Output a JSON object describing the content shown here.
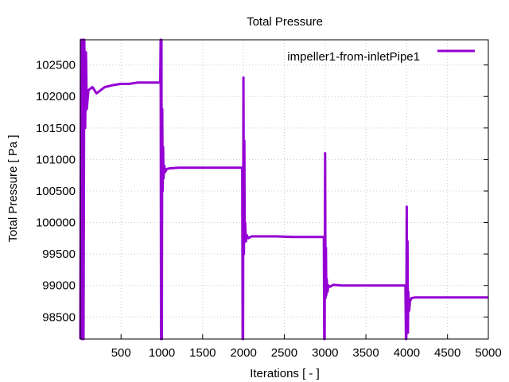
{
  "chart_data": {
    "type": "line",
    "title": "Total Pressure",
    "xlabel": "Iterations [ - ]",
    "ylabel": "Total Pressure [ Pa ]",
    "xlim": [
      1,
      5000
    ],
    "ylim": [
      98150,
      102900
    ],
    "xticks": [
      500,
      1000,
      1500,
      2000,
      2500,
      3000,
      3500,
      4000,
      4500,
      5000
    ],
    "yticks": [
      98500,
      99000,
      99500,
      100000,
      100500,
      101000,
      101500,
      102000,
      102500
    ],
    "grid": true,
    "legend_position": "top-right",
    "colors": {
      "series": "#9400d3"
    },
    "series": [
      {
        "name": "impeller1-from-inletPipe1",
        "x": [
          1,
          10,
          20,
          30,
          40,
          50,
          60,
          70,
          80,
          100,
          150,
          200,
          250,
          300,
          400,
          500,
          600,
          700,
          800,
          900,
          980,
          985,
          990,
          995,
          1000,
          1005,
          1010,
          1015,
          1020,
          1030,
          1040,
          1060,
          1100,
          1200,
          1400,
          1600,
          1800,
          1980,
          1985,
          1990,
          1995,
          2000,
          2005,
          2010,
          2015,
          2020,
          2030,
          2040,
          2060,
          2100,
          2200,
          2400,
          2600,
          2800,
          2980,
          2985,
          2990,
          2995,
          3000,
          3005,
          3010,
          3015,
          3020,
          3030,
          3040,
          3060,
          3100,
          3200,
          3400,
          3600,
          3800,
          3980,
          3985,
          3990,
          3995,
          4000,
          4005,
          4010,
          4015,
          4020,
          4030,
          4040,
          4060,
          4100,
          4200,
          4400,
          4600,
          4800,
          5000
        ],
        "y": [
          98150,
          102900,
          98150,
          102900,
          98150,
          102900,
          101500,
          102700,
          101800,
          102100,
          102150,
          102050,
          102100,
          102150,
          102180,
          102200,
          102200,
          102220,
          102220,
          102220,
          102220,
          102900,
          98150,
          102900,
          98150,
          101800,
          100500,
          101200,
          100700,
          100900,
          100800,
          100850,
          100860,
          100870,
          100870,
          100870,
          100870,
          100870,
          100870,
          98150,
          98150,
          102300,
          99500,
          101300,
          99700,
          100000,
          99700,
          99800,
          99750,
          99780,
          99780,
          99780,
          99770,
          99770,
          99770,
          99770,
          98150,
          98150,
          101100,
          98800,
          99600,
          98850,
          99100,
          98900,
          99000,
          98980,
          99010,
          99000,
          99000,
          99000,
          99000,
          99000,
          99000,
          98150,
          98150,
          100250,
          98400,
          99700,
          98250,
          98900,
          98600,
          98750,
          98800,
          98810,
          98810,
          98810,
          98810,
          98810,
          98810
        ]
      }
    ]
  }
}
